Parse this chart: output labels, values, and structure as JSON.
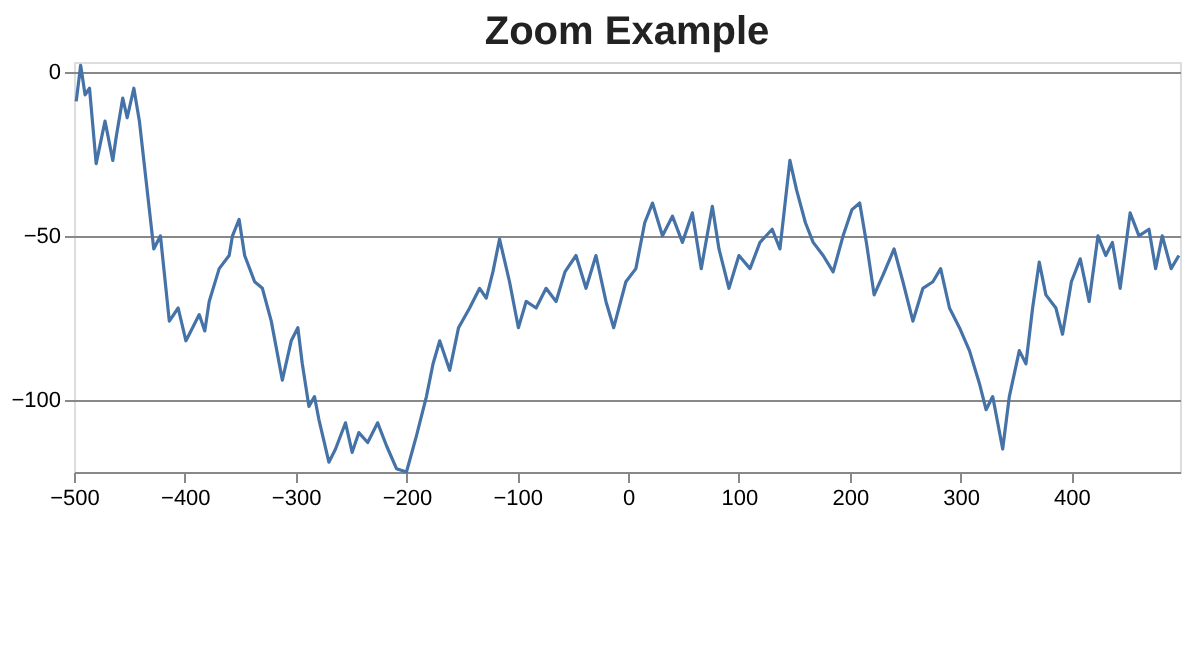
{
  "chart_data": {
    "type": "line",
    "title": "Zoom Example",
    "x": [
      -498,
      -494,
      -490,
      -486,
      -480,
      -472,
      -465,
      -462,
      -456,
      -452,
      -446,
      -441,
      -432,
      -428,
      -422,
      -414,
      -406,
      -399,
      -393,
      -387,
      -382,
      -378,
      -369,
      -360,
      -357,
      -351,
      -346,
      -337,
      -330,
      -322,
      -312,
      -304,
      -298,
      -294,
      -288,
      -283,
      -279,
      -270,
      -264,
      -255,
      -249,
      -243,
      -235,
      -226,
      -218,
      -209,
      -200,
      -191,
      -182,
      -176,
      -170,
      -161,
      -153,
      -143,
      -134,
      -128,
      -122,
      -116,
      -107,
      -99,
      -92,
      -83,
      -74,
      -65,
      -57,
      -47,
      -38,
      -29,
      -20,
      -13,
      -2,
      7,
      15,
      22,
      31,
      40,
      49,
      58,
      66,
      76,
      82,
      91,
      100,
      110,
      119,
      130,
      137,
      146,
      152,
      160,
      167,
      176,
      185,
      194,
      202,
      209,
      215,
      222,
      230,
      240,
      248,
      257,
      266,
      275,
      282,
      290,
      299,
      308,
      317,
      323,
      329,
      338,
      344,
      353,
      359,
      365,
      371,
      377,
      386,
      392,
      400,
      408,
      416,
      424,
      431,
      437,
      444,
      453,
      461,
      470,
      476,
      482,
      490,
      497
    ],
    "series": [
      {
        "color": "#4572a7",
        "values": [
          -9,
          2,
          -7,
          -5,
          -28,
          -15,
          -27,
          -20,
          -8,
          -14,
          -5,
          -15,
          -42,
          -54,
          -50,
          -76,
          -72,
          -82,
          -78,
          -74,
          -79,
          -70,
          -60,
          -56,
          -50,
          -45,
          -56,
          -64,
          -66,
          -76,
          -94,
          -82,
          -78,
          -89,
          -102,
          -99,
          -106,
          -119,
          -115,
          -107,
          -116,
          -110,
          -113,
          -107,
          -114,
          -121,
          -122,
          -111,
          -99,
          -89,
          -82,
          -91,
          -78,
          -72,
          -66,
          -69,
          -61,
          -51,
          -64,
          -78,
          -70,
          -72,
          -66,
          -70,
          -61,
          -56,
          -66,
          -56,
          -70,
          -78,
          -64,
          -60,
          -46,
          -40,
          -50,
          -44,
          -52,
          -43,
          -60,
          -41,
          -54,
          -66,
          -56,
          -60,
          -52,
          -48,
          -54,
          -27,
          -36,
          -46,
          -52,
          -56,
          -61,
          -50,
          -42,
          -40,
          -52,
          -68,
          -62,
          -54,
          -64,
          -76,
          -66,
          -64,
          -60,
          -72,
          -78,
          -85,
          -95,
          -103,
          -99,
          -115,
          -99,
          -85,
          -89,
          -72,
          -58,
          -68,
          -72,
          -80,
          -64,
          -57,
          -70,
          -50,
          -56,
          -52,
          -66,
          -43,
          -50,
          -48,
          -60,
          -50,
          -60,
          -56
        ]
      }
    ],
    "xlim": [
      -500,
      498
    ],
    "xticks": [
      -500,
      -400,
      -300,
      -200,
      -100,
      0,
      100,
      200,
      300,
      400
    ],
    "ylim": [
      -122,
      3
    ],
    "yticks": [
      -100,
      -50,
      0
    ],
    "grid": "y",
    "marker": "none",
    "line_style": "solid"
  }
}
